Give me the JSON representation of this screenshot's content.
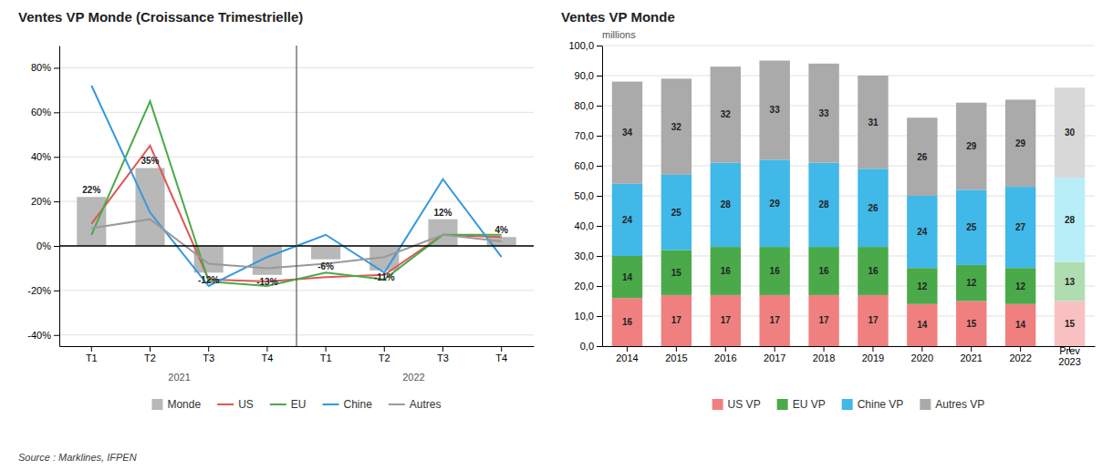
{
  "chart_data": [
    {
      "type": "bar",
      "title": "Ventes VP Monde (Croissance Trimestrielle)",
      "categories": [
        "T1",
        "T2",
        "T3",
        "T4",
        "T1",
        "T2",
        "T3",
        "T4"
      ],
      "annotations": [
        "2021",
        "2022"
      ],
      "series": [
        {
          "name": "Monde",
          "type": "bar",
          "color": "#b8b8b8",
          "values": [
            22,
            35,
            -12,
            -13,
            -6,
            -11,
            12,
            4
          ],
          "value_labels": [
            "22%",
            "35%",
            "-12%",
            "-13%",
            "-6%",
            "-11%",
            "12%",
            "4%"
          ]
        },
        {
          "name": "US",
          "type": "line",
          "color": "#e05555",
          "values": [
            10,
            45,
            -15,
            -16,
            -14,
            -13,
            5,
            4
          ]
        },
        {
          "name": "EU",
          "type": "line",
          "color": "#4aaa4a",
          "values": [
            5,
            65,
            -16,
            -18,
            -12,
            -15,
            5,
            5
          ]
        },
        {
          "name": "Chine",
          "type": "line",
          "color": "#3399dd",
          "values": [
            72,
            15,
            -18,
            -5,
            5,
            -12,
            30,
            -5
          ]
        },
        {
          "name": "Autres",
          "type": "line",
          "color": "#999999",
          "values": [
            8,
            12,
            -8,
            -10,
            -8,
            -5,
            5,
            2
          ]
        }
      ],
      "ylim": [
        -45,
        90
      ],
      "yticks": [
        {
          "value": -40,
          "label": "-40%"
        },
        {
          "value": -20,
          "label": "-20%"
        },
        {
          "value": 0,
          "label": "0%"
        },
        {
          "value": 20,
          "label": "20%"
        },
        {
          "value": 40,
          "label": "40%"
        },
        {
          "value": 60,
          "label": "60%"
        },
        {
          "value": 80,
          "label": "80%"
        }
      ],
      "grid": true,
      "legend": "bottom",
      "data_labels": true
    },
    {
      "type": "bar",
      "title": "Ventes VP Monde",
      "ylabel": "millions",
      "annotations": [
        "Source : Marklines, IFPEN"
      ],
      "categories": [
        "2014",
        "2015",
        "2016",
        "2017",
        "2018",
        "2019",
        "2020",
        "2021",
        "2022",
        "Prev\n2023"
      ],
      "stacked": true,
      "series": [
        {
          "name": "US VP",
          "color": "#f08080",
          "values": [
            16,
            17,
            17,
            17,
            17,
            17,
            14,
            15,
            14,
            15
          ],
          "colors": [
            "#f08080",
            "#f08080",
            "#f08080",
            "#f08080",
            "#f08080",
            "#f08080",
            "#f08080",
            "#f08080",
            "#f08080",
            "#f8c0c0"
          ]
        },
        {
          "name": "EU VP",
          "color": "#4aaa4a",
          "values": [
            14,
            15,
            16,
            16,
            16,
            16,
            12,
            12,
            12,
            13
          ],
          "colors": [
            "#4aaa4a",
            "#4aaa4a",
            "#4aaa4a",
            "#4aaa4a",
            "#4aaa4a",
            "#4aaa4a",
            "#4aaa4a",
            "#4aaa4a",
            "#4aaa4a",
            "#b0ddb0"
          ]
        },
        {
          "name": "Chine VP",
          "color": "#40b8e8",
          "values": [
            24,
            25,
            28,
            29,
            28,
            26,
            24,
            25,
            27,
            28
          ],
          "colors": [
            "#40b8e8",
            "#40b8e8",
            "#40b8e8",
            "#40b8e8",
            "#40b8e8",
            "#40b8e8",
            "#40b8e8",
            "#40b8e8",
            "#40b8e8",
            "#b8eef8"
          ]
        },
        {
          "name": "Autres VP",
          "color": "#aaaaaa",
          "values": [
            34,
            32,
            32,
            33,
            33,
            31,
            26,
            29,
            29,
            30
          ],
          "colors": [
            "#aaaaaa",
            "#aaaaaa",
            "#aaaaaa",
            "#aaaaaa",
            "#aaaaaa",
            "#aaaaaa",
            "#aaaaaa",
            "#aaaaaa",
            "#aaaaaa",
            "#d8d8d8"
          ]
        }
      ],
      "ylim": [
        0,
        100
      ],
      "yticks": [
        {
          "value": 0,
          "label": "0,0"
        },
        {
          "value": 10,
          "label": "10,0"
        },
        {
          "value": 20,
          "label": "20,0"
        },
        {
          "value": 30,
          "label": "30,0"
        },
        {
          "value": 40,
          "label": "40,0"
        },
        {
          "value": 50,
          "label": "50,0"
        },
        {
          "value": 60,
          "label": "60,0"
        },
        {
          "value": 70,
          "label": "70,0"
        },
        {
          "value": 80,
          "label": "80,0"
        },
        {
          "value": 90,
          "label": "90,0"
        },
        {
          "value": 100,
          "label": "100,0"
        }
      ],
      "grid": true,
      "legend": "bottom",
      "data_labels": true
    }
  ]
}
